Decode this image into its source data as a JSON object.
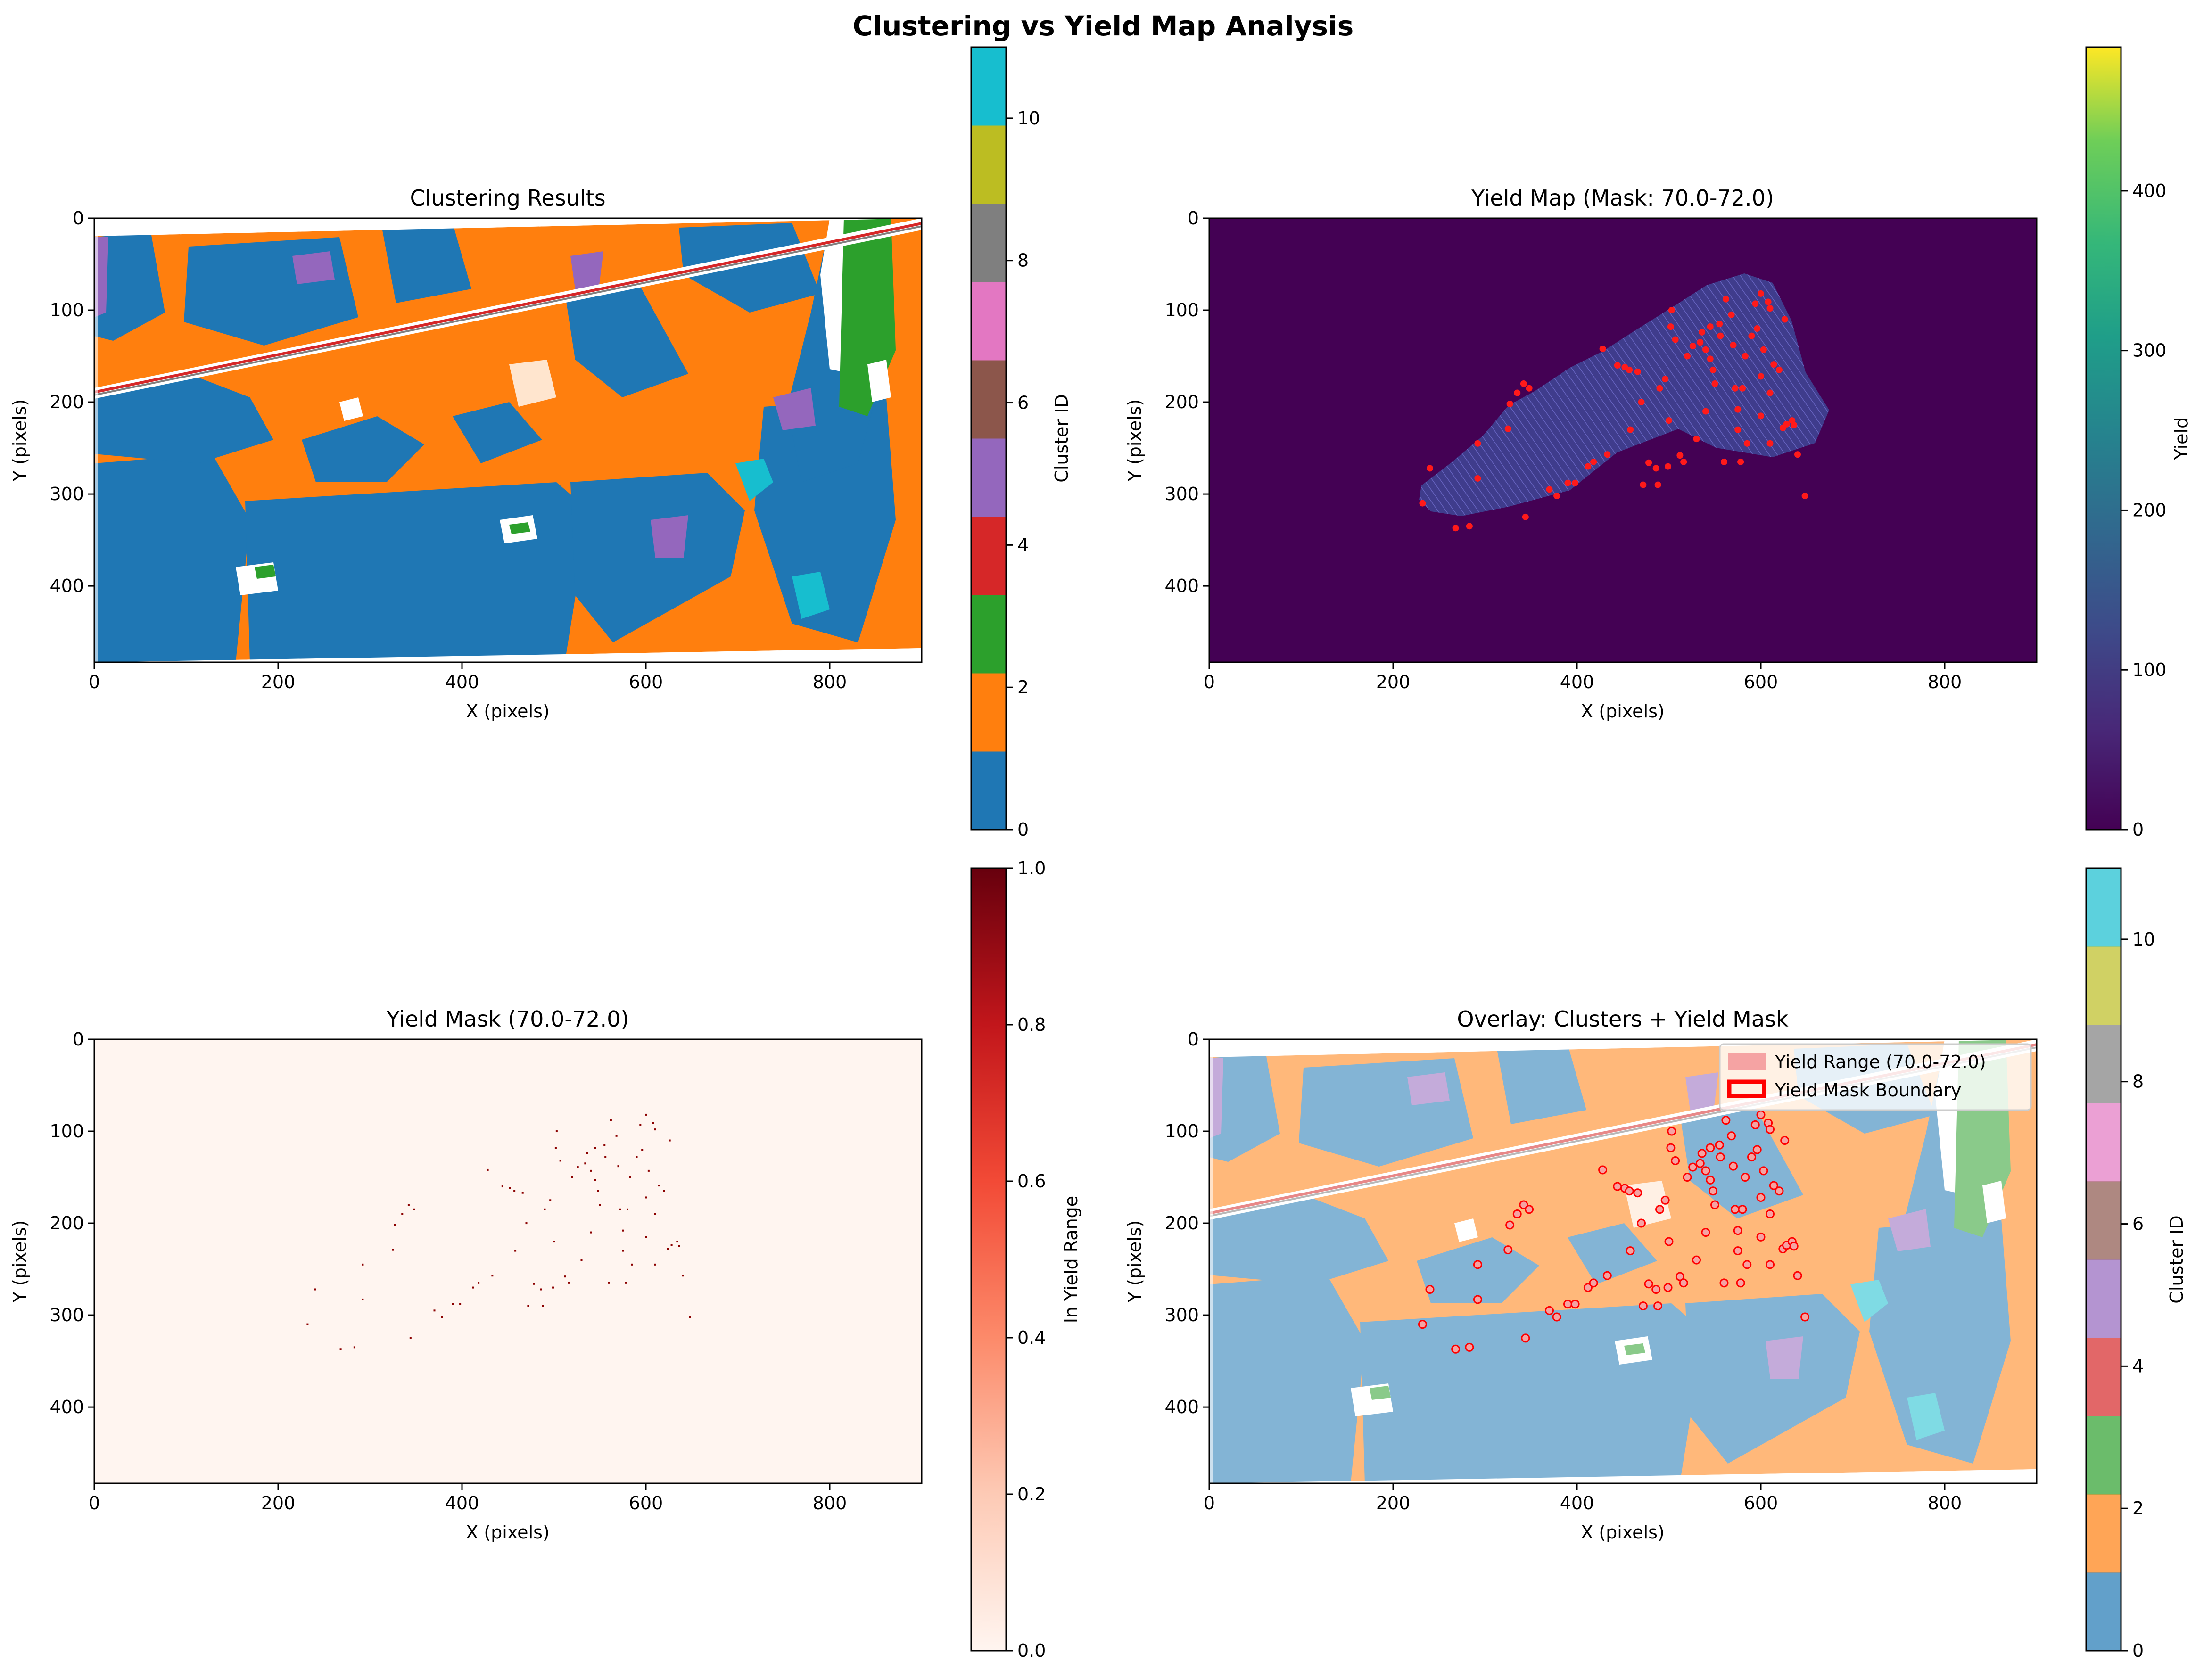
{
  "figure": {
    "suptitle": "Clustering vs Yield Map Analysis"
  },
  "chart_data": [
    {
      "id": "clustering",
      "type": "heatmap",
      "title": "Clustering Results",
      "xlabel": "X (pixels)",
      "ylabel": "Y (pixels)",
      "xlim": [
        0,
        900
      ],
      "ylim": [
        483,
        0
      ],
      "xticks": [
        0,
        200,
        400,
        600,
        800
      ],
      "yticks": [
        0,
        100,
        200,
        300,
        400
      ],
      "colorbar": {
        "label": "Cluster ID",
        "ticks": [
          0,
          2,
          4,
          6,
          8,
          10
        ],
        "range": [
          0,
          11
        ]
      },
      "categories": [
        {
          "id": 0,
          "color": "#1f77b4"
        },
        {
          "id": 1,
          "color": "#ff7f0e"
        },
        {
          "id": 2,
          "color": "#2ca02c"
        },
        {
          "id": 3,
          "color": "#d62728"
        },
        {
          "id": 4,
          "color": "#9467bd"
        },
        {
          "id": 5,
          "color": "#8c564b"
        },
        {
          "id": 6,
          "color": "#e377c2"
        },
        {
          "id": 7,
          "color": "#7f7f7f"
        },
        {
          "id": 8,
          "color": "#bcbd22"
        },
        {
          "id": 9,
          "color": "#17becf"
        }
      ],
      "regions": [
        {
          "cluster": 1,
          "note": "orange field, left/bottom-left",
          "x": [
            0,
            170
          ],
          "y": [
            250,
            480
          ]
        },
        {
          "cluster": 0,
          "note": "blue field, center-bottom",
          "x": [
            170,
            520
          ],
          "y": [
            300,
            470
          ]
        },
        {
          "cluster": 1,
          "note": "orange field, upper",
          "x": [
            120,
            770
          ],
          "y": [
            15,
            180
          ]
        },
        {
          "cluster": 2,
          "note": "green strip",
          "x": [
            780,
            840
          ],
          "y": [
            0,
            250
          ]
        },
        {
          "cluster": 9,
          "note": "cyan patch",
          "x": [
            700,
            740
          ],
          "y": [
            300,
            340
          ]
        }
      ]
    },
    {
      "id": "yield_map",
      "type": "heatmap",
      "title": "Yield Map (Mask: 70.0-72.0)",
      "xlabel": "X (pixels)",
      "ylabel": "Y (pixels)",
      "xlim": [
        0,
        900
      ],
      "ylim": [
        483,
        0
      ],
      "xticks": [
        0,
        200,
        400,
        600,
        800
      ],
      "yticks": [
        0,
        100,
        200,
        300,
        400
      ],
      "colorbar": {
        "label": "Yield",
        "ticks": [
          0,
          100,
          200,
          300,
          400
        ],
        "range": [
          0,
          490
        ],
        "colormap": "viridis"
      },
      "background_value": 0,
      "field_value_approx": 80
    },
    {
      "id": "yield_mask",
      "type": "heatmap",
      "title": "Yield Mask (70.0-72.0)",
      "xlabel": "X (pixels)",
      "ylabel": "Y (pixels)",
      "xlim": [
        0,
        900
      ],
      "ylim": [
        483,
        0
      ],
      "xticks": [
        0,
        200,
        400,
        600,
        800
      ],
      "yticks": [
        0,
        100,
        200,
        300,
        400
      ],
      "colorbar": {
        "label": "In Yield Range",
        "ticks": [
          0.0,
          0.2,
          0.4,
          0.6,
          0.8,
          1.0
        ],
        "range": [
          0,
          1
        ],
        "colormap": "Reds"
      }
    },
    {
      "id": "overlay",
      "type": "heatmap",
      "title": "Overlay: Clusters + Yield Mask",
      "xlabel": "X (pixels)",
      "ylabel": "Y (pixels)",
      "xlim": [
        0,
        900
      ],
      "ylim": [
        483,
        0
      ],
      "xticks": [
        0,
        200,
        400,
        600,
        800
      ],
      "yticks": [
        0,
        100,
        200,
        300,
        400
      ],
      "colorbar": {
        "label": "Cluster ID",
        "ticks": [
          0,
          2,
          4,
          6,
          8,
          10
        ],
        "range": [
          0,
          11
        ]
      },
      "legend": {
        "position": "top-right",
        "entries": [
          {
            "label": "Yield Range (70.0-72.0)",
            "color": "#f5a3a3",
            "style": "patch"
          },
          {
            "label": "Yield Mask Boundary",
            "color": "#ff0000",
            "style": "outline"
          }
        ]
      }
    }
  ],
  "yield_points": [
    [
      232,
      310
    ],
    [
      240,
      272
    ],
    [
      268,
      337
    ],
    [
      283,
      335
    ],
    [
      292,
      283
    ],
    [
      292,
      245
    ],
    [
      325,
      229
    ],
    [
      327,
      202
    ],
    [
      335,
      190
    ],
    [
      342,
      180
    ],
    [
      344,
      325
    ],
    [
      348,
      185
    ],
    [
      370,
      295
    ],
    [
      378,
      302
    ],
    [
      390,
      288
    ],
    [
      398,
      288
    ],
    [
      412,
      270
    ],
    [
      418,
      265
    ],
    [
      428,
      142
    ],
    [
      433,
      257
    ],
    [
      444,
      160
    ],
    [
      452,
      162
    ],
    [
      457,
      165
    ],
    [
      458,
      230
    ],
    [
      466,
      167
    ],
    [
      472,
      290
    ],
    [
      478,
      266
    ],
    [
      486,
      272
    ],
    [
      488,
      290
    ],
    [
      490,
      185
    ],
    [
      496,
      175
    ],
    [
      499,
      270
    ],
    [
      502,
      118
    ],
    [
      503,
      100
    ],
    [
      507,
      132
    ],
    [
      512,
      258
    ],
    [
      516,
      265
    ],
    [
      520,
      150
    ],
    [
      526,
      139
    ],
    [
      534,
      135
    ],
    [
      536,
      124
    ],
    [
      540,
      143
    ],
    [
      545,
      118
    ],
    [
      545,
      153
    ],
    [
      548,
      165
    ],
    [
      550,
      180
    ],
    [
      555,
      115
    ],
    [
      556,
      128
    ],
    [
      560,
      265
    ],
    [
      562,
      88
    ],
    [
      568,
      105
    ],
    [
      570,
      138
    ],
    [
      572,
      185
    ],
    [
      575,
      208
    ],
    [
      578,
      265
    ],
    [
      580,
      185
    ],
    [
      583,
      150
    ],
    [
      590,
      128
    ],
    [
      594,
      93
    ],
    [
      596,
      120
    ],
    [
      600,
      82
    ],
    [
      600,
      172
    ],
    [
      603,
      143
    ],
    [
      608,
      91
    ],
    [
      610,
      98
    ],
    [
      610,
      190
    ],
    [
      614,
      159
    ],
    [
      620,
      165
    ],
    [
      624,
      228
    ],
    [
      626,
      110
    ],
    [
      628,
      224
    ],
    [
      634,
      220
    ],
    [
      636,
      225
    ],
    [
      640,
      257
    ],
    [
      648,
      302
    ],
    [
      610,
      245
    ],
    [
      585,
      245
    ],
    [
      530,
      240
    ],
    [
      470,
      200
    ],
    [
      500,
      220
    ],
    [
      540,
      210
    ],
    [
      600,
      215
    ],
    [
      575,
      230
    ]
  ]
}
